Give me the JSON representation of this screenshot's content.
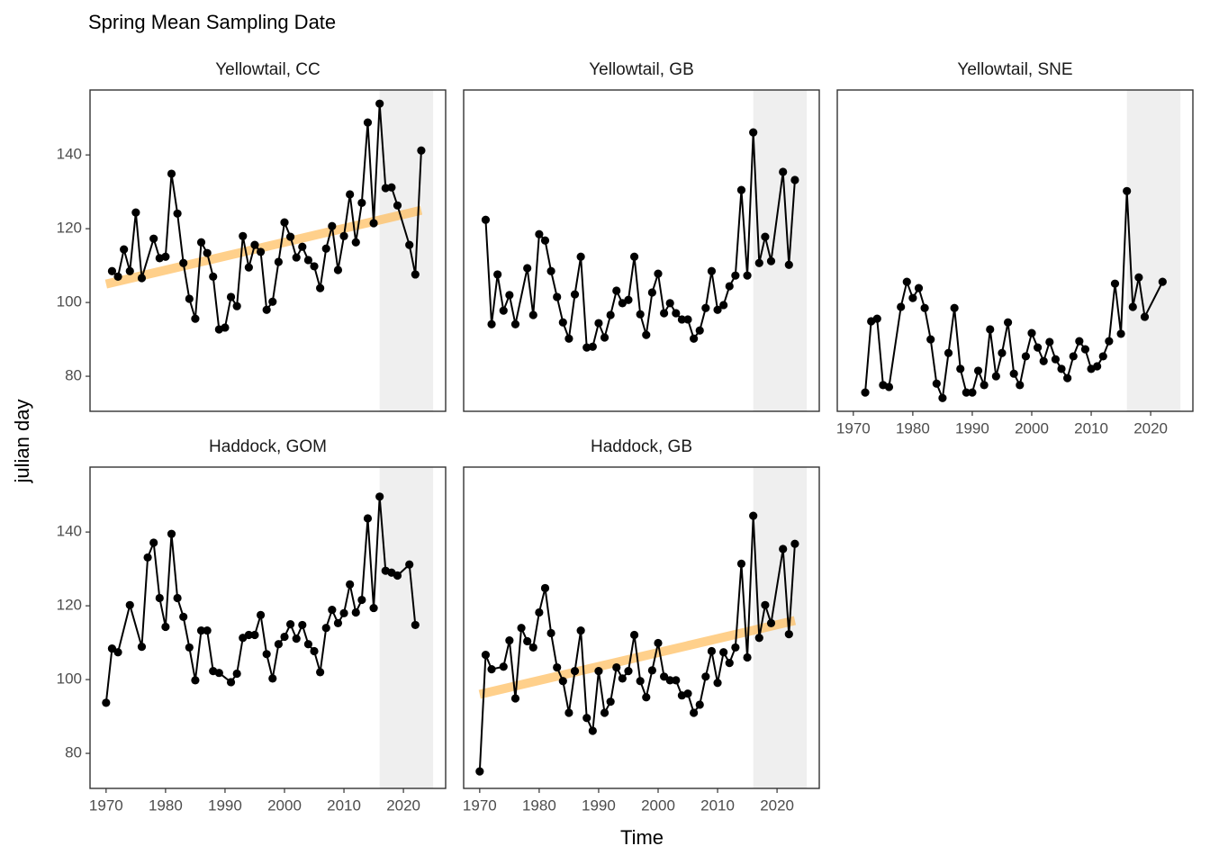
{
  "title": "Spring Mean Sampling Date",
  "xlabel": "Time",
  "ylabel": "julian day",
  "chart_data": [
    {
      "type": "line",
      "title": "Yellowtail, CC",
      "color": "#000000",
      "xlim": [
        1967.3,
        2027.1
      ],
      "ylim": [
        70.5,
        157.6
      ],
      "yticks": [
        80,
        100,
        120,
        140
      ],
      "highlight": [
        2016,
        2025
      ],
      "x": [
        1971,
        1972,
        1973,
        1974,
        1975,
        1976,
        1978,
        1979,
        1980,
        1981,
        1982,
        1983,
        1984,
        1985,
        1986,
        1987,
        1988,
        1989,
        1990,
        1991,
        1992,
        1993,
        1994,
        1995,
        1996,
        1997,
        1998,
        1999,
        2000,
        2001,
        2002,
        2003,
        2004,
        2005,
        2006,
        2007,
        2008,
        2009,
        2010,
        2011,
        2012,
        2013,
        2014,
        2015,
        2016,
        2017,
        2018,
        2019,
        2021,
        2022,
        2023
      ],
      "values": [
        108.5,
        107,
        114.4,
        108.5,
        124.4,
        106.6,
        117.3,
        112,
        112.4,
        134.9,
        124.1,
        110.7,
        101,
        95.6,
        116.3,
        113.4,
        107,
        92.7,
        93.2,
        101.5,
        99,
        118,
        109.5,
        115.6,
        113.7,
        98,
        100.2,
        111,
        121.7,
        117.8,
        112.2,
        115.1,
        111.5,
        109.8,
        103.9,
        114.6,
        120.7,
        108.8,
        118,
        129.3,
        116.3,
        127,
        148.8,
        121.5,
        153.9,
        131,
        131.2,
        126.3,
        115.6,
        107.6,
        141.2
      ],
      "trend": {
        "x": [
          1970,
          2023
        ],
        "values": [
          105,
          125
        ],
        "color": "#ffb74d"
      }
    },
    {
      "type": "line",
      "title": "Yellowtail, GB",
      "color": "#000000",
      "xlim": [
        1967.3,
        2027.1
      ],
      "ylim": [
        70.5,
        157.6
      ],
      "highlight": [
        2016,
        2025
      ],
      "x": [
        1971,
        1972,
        1973,
        1974,
        1975,
        1976,
        1978,
        1979,
        1980,
        1981,
        1982,
        1983,
        1984,
        1985,
        1986,
        1987,
        1988,
        1989,
        1990,
        1991,
        1992,
        1993,
        1994,
        1995,
        1996,
        1997,
        1998,
        1999,
        2000,
        2001,
        2002,
        2003,
        2004,
        2005,
        2006,
        2007,
        2008,
        2009,
        2010,
        2011,
        2012,
        2013,
        2014,
        2015,
        2016,
        2017,
        2018,
        2019,
        2021,
        2022,
        2023
      ],
      "values": [
        122.4,
        94.1,
        107.6,
        97.8,
        102,
        94.1,
        109.3,
        96.6,
        118.5,
        116.8,
        108.5,
        101.5,
        94.6,
        90.2,
        102.2,
        112.4,
        87.8,
        88,
        94.4,
        90.5,
        96.6,
        103.2,
        99.8,
        100.7,
        112.4,
        96.8,
        91.2,
        102.7,
        107.8,
        97.1,
        99.8,
        97.1,
        95.4,
        95.4,
        90.2,
        92.4,
        98.5,
        108.5,
        98,
        99.3,
        104.4,
        107.3,
        130.5,
        107.3,
        146.1,
        110.7,
        117.8,
        111.2,
        135.4,
        110.2,
        133.2
      ]
    },
    {
      "type": "line",
      "title": "Yellowtail, SNE",
      "color": "#000000",
      "xlim": [
        1967.3,
        2027.1
      ],
      "ylim": [
        70.5,
        157.6
      ],
      "xticks": [
        1970,
        1980,
        1990,
        2000,
        2010,
        2020
      ],
      "highlight": [
        2016,
        2025
      ],
      "x": [
        1972,
        1973,
        1974,
        1975,
        1976,
        1978,
        1979,
        1980,
        1981,
        1982,
        1983,
        1984,
        1985,
        1986,
        1987,
        1988,
        1989,
        1990,
        1991,
        1992,
        1993,
        1994,
        1995,
        1996,
        1997,
        1998,
        1999,
        2000,
        2001,
        2002,
        2003,
        2004,
        2005,
        2006,
        2007,
        2008,
        2009,
        2010,
        2011,
        2012,
        2013,
        2014,
        2015,
        2016,
        2017,
        2018,
        2019,
        2022
      ],
      "values": [
        75.6,
        94.9,
        95.6,
        77.6,
        77.1,
        98.8,
        105.6,
        101.2,
        103.9,
        98.5,
        90,
        78,
        74.1,
        86.3,
        98.5,
        82,
        75.6,
        75.6,
        81.5,
        77.6,
        92.7,
        80,
        86.3,
        94.6,
        80.7,
        77.6,
        85.4,
        91.7,
        87.8,
        84.1,
        89.3,
        84.6,
        82,
        79.5,
        85.4,
        89.5,
        87.3,
        82,
        82.7,
        85.4,
        89.5,
        105.1,
        91.5,
        130.2,
        98.8,
        106.8,
        96.1,
        105.6
      ]
    },
    {
      "type": "line",
      "title": "Haddock, GOM",
      "color": "#000000",
      "xlim": [
        1967.3,
        2027.1
      ],
      "ylim": [
        70.5,
        157.6
      ],
      "yticks": [
        80,
        100,
        120,
        140
      ],
      "xticks": [
        1970,
        1980,
        1990,
        2000,
        2010,
        2020
      ],
      "highlight": [
        2016,
        2025
      ],
      "x": [
        1970,
        1971,
        1972,
        1974,
        1976,
        1977,
        1978,
        1979,
        1980,
        1981,
        1982,
        1983,
        1984,
        1985,
        1986,
        1987,
        1988,
        1989,
        1991,
        1992,
        1993,
        1994,
        1995,
        1996,
        1997,
        1998,
        1999,
        2000,
        2001,
        2002,
        2003,
        2004,
        2005,
        2006,
        2007,
        2008,
        2009,
        2010,
        2011,
        2012,
        2013,
        2014,
        2015,
        2016,
        2017,
        2018,
        2019,
        2021,
        2022
      ],
      "values": [
        93.7,
        108.4,
        107.4,
        120.2,
        108.9,
        133.1,
        137.1,
        122.1,
        114.3,
        139.5,
        122.1,
        117,
        108.7,
        99.8,
        113.3,
        113.3,
        102.3,
        101.8,
        99.3,
        101.6,
        111.3,
        112.1,
        112.1,
        117.5,
        106.9,
        100.3,
        109.6,
        111.6,
        115,
        111.1,
        114.8,
        109.6,
        107.7,
        102,
        114,
        118.9,
        115.3,
        118,
        125.8,
        118.2,
        121.6,
        143.7,
        119.4,
        149.6,
        129.5,
        129,
        128.2,
        131.2,
        114.8
      ]
    },
    {
      "type": "line",
      "title": "Haddock, GB",
      "color": "#000000",
      "xlim": [
        1967.3,
        2027.1
      ],
      "ylim": [
        70.5,
        157.6
      ],
      "xticks": [
        1970,
        1980,
        1990,
        2000,
        2010,
        2020
      ],
      "highlight": [
        2016,
        2025
      ],
      "x": [
        1970,
        1971,
        1972,
        1974,
        1975,
        1976,
        1977,
        1978,
        1979,
        1980,
        1981,
        1982,
        1983,
        1984,
        1985,
        1986,
        1987,
        1988,
        1989,
        1990,
        1991,
        1992,
        1993,
        1994,
        1995,
        1996,
        1997,
        1998,
        1999,
        2000,
        2001,
        2002,
        2003,
        2004,
        2005,
        2006,
        2007,
        2008,
        2009,
        2010,
        2011,
        2012,
        2013,
        2014,
        2015,
        2016,
        2017,
        2018,
        2019,
        2021,
        2022,
        2023
      ],
      "values": [
        75.1,
        106.7,
        102.8,
        103.5,
        110.6,
        94.9,
        114,
        110.4,
        108.7,
        118.2,
        124.8,
        112.6,
        103.3,
        99.6,
        91,
        102.3,
        113.3,
        89.6,
        86.1,
        102.3,
        91,
        94,
        103.3,
        100.3,
        102.3,
        112.1,
        99.6,
        95.2,
        102.5,
        109.9,
        100.8,
        99.8,
        99.8,
        95.7,
        96.2,
        91,
        93.2,
        100.8,
        107.7,
        99.1,
        107.4,
        104.5,
        108.7,
        131.4,
        106,
        144.4,
        111.3,
        120.2,
        115.3,
        135.4,
        112.3,
        136.8
      ],
      "trend": {
        "x": [
          1970,
          2023
        ],
        "values": [
          96,
          116
        ],
        "color": "#ffb74d"
      }
    }
  ]
}
